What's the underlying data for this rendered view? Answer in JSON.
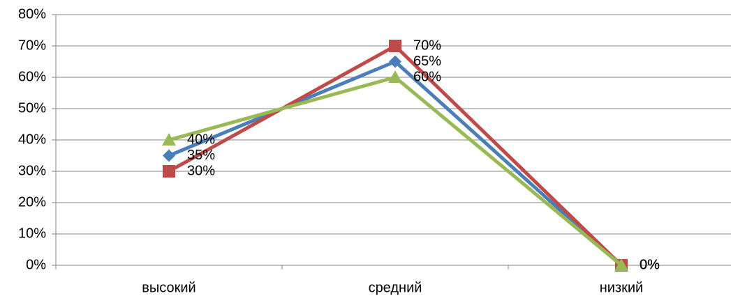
{
  "chart_data": {
    "type": "line",
    "categories": [
      "высокий",
      "средний",
      "низкий"
    ],
    "ylim": [
      0,
      80
    ],
    "y_ticks": [
      "0%",
      "10%",
      "20%",
      "30%",
      "40%",
      "50%",
      "60%",
      "70%",
      "80%"
    ],
    "grid": "horizontal",
    "series": [
      {
        "values": [
          35,
          65,
          0
        ],
        "labels": [
          "35%",
          "65%",
          "0%"
        ],
        "color": "#4a7ebb",
        "marker": "diamond"
      },
      {
        "values": [
          30,
          70,
          0
        ],
        "labels": [
          "30%",
          "70%",
          "0%"
        ],
        "color": "#be4b48",
        "marker": "square"
      },
      {
        "values": [
          40,
          60,
          0
        ],
        "labels": [
          "40%",
          "60%",
          "0%"
        ],
        "color": "#98b954",
        "marker": "triangle"
      }
    ]
  }
}
